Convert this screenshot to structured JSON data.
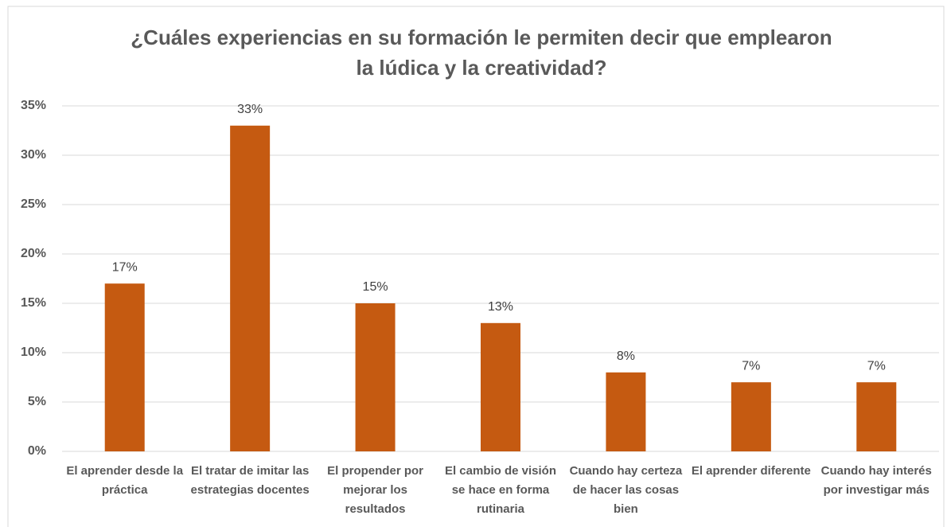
{
  "chart_data": {
    "type": "bar",
    "title": [
      "¿Cuáles experiencias en su formación le permiten decir que emplearon",
      "la lúdica y la creatividad?"
    ],
    "categories": [
      "El aprender desde la práctica",
      "El tratar de imitar las estrategias docentes",
      "El propender por mejorar los resultados",
      "El cambio de visión se hace en forma rutinaria",
      "Cuando hay certeza de hacer las cosas bien",
      "El aprender diferente",
      "Cuando hay interés por investigar más"
    ],
    "values": [
      17,
      33,
      15,
      13,
      8,
      7,
      7
    ],
    "value_labels": [
      "17%",
      "33%",
      "15%",
      "13%",
      "8%",
      "7%",
      "7%"
    ],
    "color": "#c55a11",
    "ylim": [
      0,
      35
    ],
    "yticks": [
      {
        "value": 0,
        "label": "0%"
      },
      {
        "value": 5,
        "label": "5%"
      },
      {
        "value": 10,
        "label": "10%"
      },
      {
        "value": 15,
        "label": "15%"
      },
      {
        "value": 20,
        "label": "20%"
      },
      {
        "value": 25,
        "label": "25%"
      },
      {
        "value": 30,
        "label": "30%"
      },
      {
        "value": 35,
        "label": "35%"
      }
    ],
    "grid": true
  }
}
